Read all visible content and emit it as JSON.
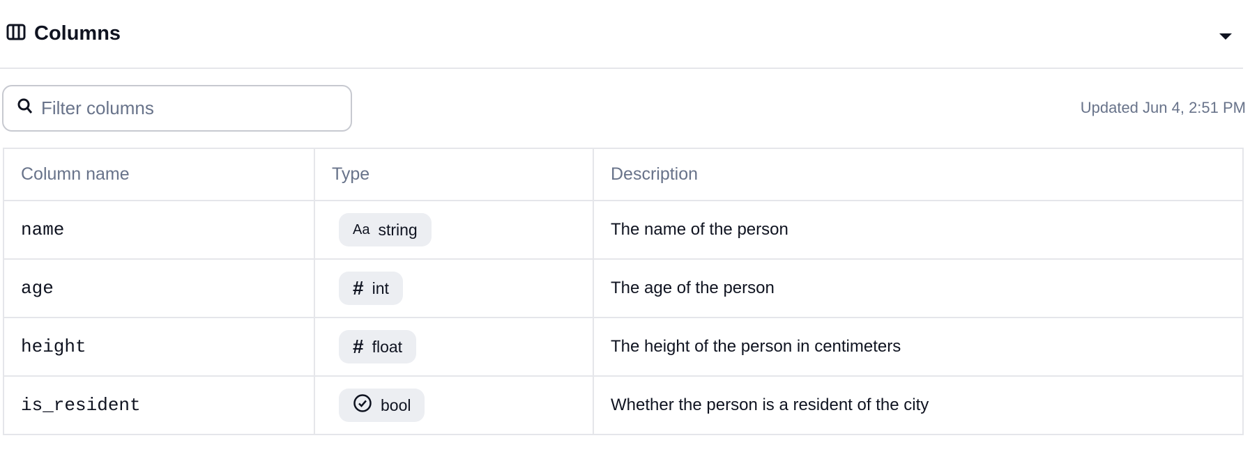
{
  "header": {
    "title": "Columns",
    "icon": "columns-icon",
    "collapse_icon": "caret-down-icon"
  },
  "search": {
    "placeholder": "Filter columns",
    "value": ""
  },
  "updated": "Updated Jun 4, 2:51 PM",
  "table": {
    "headers": [
      "Column name",
      "Type",
      "Description"
    ],
    "rows": [
      {
        "name": "name",
        "type": "string",
        "type_icon": "Aa",
        "description": "The name of the person"
      },
      {
        "name": "age",
        "type": "int",
        "type_icon": "#",
        "description": "The age of the person"
      },
      {
        "name": "height",
        "type": "float",
        "type_icon": "#",
        "description": "The height of the person in centimeters"
      },
      {
        "name": "is_resident",
        "type": "bool",
        "type_icon": "check-circle",
        "description": "Whether the person is a resident of the city"
      }
    ]
  }
}
